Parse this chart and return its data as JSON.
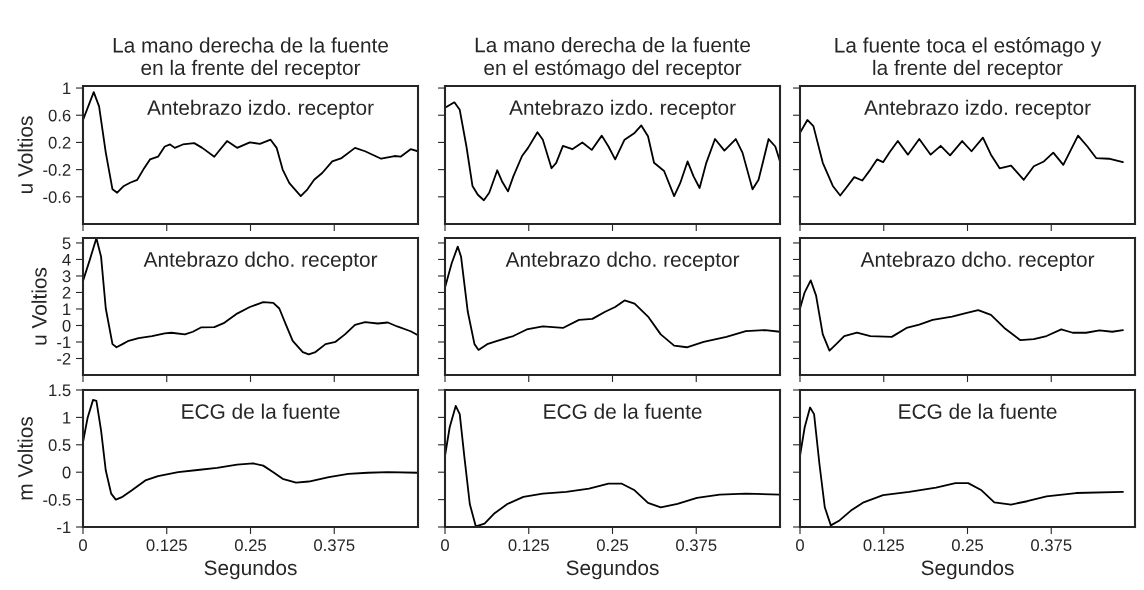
{
  "chart_data": [
    {
      "type": "line",
      "title": "La mano derecha de la fuente\nen la frente del receptor",
      "ylabel": "u Voltios",
      "xlim": [
        0,
        0.5
      ],
      "xticks": [
        0,
        0.125,
        0.25,
        0.375
      ],
      "ylim": [
        -1,
        1.03
      ],
      "yticks": [
        -0.6,
        -0.2,
        0.2,
        0.6,
        1
      ],
      "tick_labels": "y",
      "annotations": [
        "Antebrazo izdo. receptor"
      ],
      "series": [
        {
          "color": "#000000",
          "x": [
            0,
            0.016,
            0.024,
            0.034,
            0.044,
            0.051,
            0.061,
            0.071,
            0.081,
            0.09,
            0.1,
            0.112,
            0.122,
            0.13,
            0.137,
            0.149,
            0.166,
            0.178,
            0.196,
            0.205,
            0.215,
            0.23,
            0.249,
            0.264,
            0.28,
            0.289,
            0.298,
            0.308,
            0.325,
            0.335,
            0.345,
            0.357,
            0.372,
            0.386,
            0.406,
            0.421,
            0.445,
            0.465,
            0.474,
            0.489,
            0.5
          ],
          "values": [
            0.53,
            0.94,
            0.73,
            0.05,
            -0.49,
            -0.54,
            -0.44,
            -0.39,
            -0.35,
            -0.2,
            -0.05,
            -0.01,
            0.14,
            0.17,
            0.12,
            0.17,
            0.19,
            0.12,
            -0.01,
            0.1,
            0.22,
            0.12,
            0.2,
            0.18,
            0.24,
            0.12,
            -0.2,
            -0.4,
            -0.59,
            -0.49,
            -0.35,
            -0.25,
            -0.08,
            -0.03,
            0.12,
            0.07,
            -0.04,
            0.0,
            -0.01,
            0.1,
            0.07
          ]
        }
      ]
    },
    {
      "type": "line",
      "title": "La mano derecha de la fuente\nen el estómago del receptor",
      "xlim": [
        0,
        0.5
      ],
      "xticks": [
        0,
        0.125,
        0.25,
        0.375
      ],
      "ylim": [
        -1,
        1.03
      ],
      "yticks": [
        -0.6,
        -0.2,
        0.2,
        0.6,
        1
      ],
      "tick_labels": false,
      "annotations": [
        "Antebrazo izdo. receptor"
      ],
      "series": [
        {
          "color": "#000000",
          "x": [
            0,
            0.014,
            0.022,
            0.032,
            0.041,
            0.049,
            0.058,
            0.066,
            0.078,
            0.085,
            0.094,
            0.102,
            0.115,
            0.124,
            0.138,
            0.146,
            0.159,
            0.166,
            0.176,
            0.19,
            0.205,
            0.219,
            0.234,
            0.244,
            0.254,
            0.268,
            0.283,
            0.293,
            0.303,
            0.312,
            0.327,
            0.342,
            0.351,
            0.362,
            0.371,
            0.38,
            0.39,
            0.403,
            0.417,
            0.434,
            0.444,
            0.459,
            0.468,
            0.483,
            0.493,
            0.5
          ],
          "values": [
            0.71,
            0.79,
            0.68,
            0.14,
            -0.44,
            -0.57,
            -0.65,
            -0.54,
            -0.21,
            -0.37,
            -0.52,
            -0.3,
            0.0,
            0.12,
            0.35,
            0.24,
            -0.18,
            -0.1,
            0.15,
            0.1,
            0.2,
            0.09,
            0.3,
            0.14,
            -0.05,
            0.24,
            0.34,
            0.45,
            0.29,
            -0.1,
            -0.22,
            -0.59,
            -0.4,
            -0.08,
            -0.3,
            -0.47,
            -0.1,
            0.25,
            0.08,
            0.25,
            0.05,
            -0.49,
            -0.35,
            0.25,
            0.14,
            -0.08
          ]
        }
      ]
    },
    {
      "type": "line",
      "title": "La fuente toca el estómago y\nla frente del receptor",
      "xlim": [
        0,
        0.5
      ],
      "xticks": [
        0,
        0.125,
        0.25,
        0.375
      ],
      "ylim": [
        -1,
        1.03
      ],
      "yticks": [
        -0.6,
        -0.2,
        0.2,
        0.6,
        1
      ],
      "tick_labels": false,
      "annotations": [
        "Antebrazo izdo. receptor"
      ],
      "series": [
        {
          "color": "#000000",
          "x": [
            0,
            0.011,
            0.02,
            0.034,
            0.049,
            0.06,
            0.071,
            0.081,
            0.093,
            0.105,
            0.115,
            0.124,
            0.134,
            0.146,
            0.161,
            0.178,
            0.195,
            0.21,
            0.224,
            0.242,
            0.256,
            0.273,
            0.285,
            0.298,
            0.315,
            0.334,
            0.349,
            0.364,
            0.378,
            0.393,
            0.415,
            0.429,
            0.442,
            0.461,
            0.482
          ],
          "values": [
            0.34,
            0.53,
            0.44,
            -0.1,
            -0.44,
            -0.58,
            -0.44,
            -0.31,
            -0.36,
            -0.2,
            -0.05,
            -0.09,
            0.06,
            0.22,
            0.02,
            0.25,
            0.02,
            0.15,
            0.01,
            0.22,
            0.07,
            0.27,
            0.02,
            -0.18,
            -0.14,
            -0.35,
            -0.15,
            -0.08,
            0.05,
            -0.13,
            0.3,
            0.14,
            -0.03,
            -0.04,
            -0.09
          ]
        }
      ]
    },
    {
      "type": "line",
      "ylabel": "u Voltios",
      "xlim": [
        0,
        0.5
      ],
      "xticks": [
        0,
        0.125,
        0.25,
        0.375
      ],
      "ylim": [
        -3,
        5.3
      ],
      "yticks": [
        -2,
        -1,
        0,
        1,
        2,
        3,
        4,
        5
      ],
      "tick_labels": "y",
      "annotations": [
        "Antebrazo dcho. receptor"
      ],
      "series": [
        {
          "color": "#000000",
          "x": [
            0,
            0.01,
            0.02,
            0.027,
            0.034,
            0.044,
            0.05,
            0.059,
            0.068,
            0.083,
            0.103,
            0.122,
            0.132,
            0.152,
            0.164,
            0.176,
            0.196,
            0.21,
            0.23,
            0.249,
            0.269,
            0.284,
            0.293,
            0.303,
            0.313,
            0.328,
            0.337,
            0.347,
            0.362,
            0.377,
            0.391,
            0.406,
            0.421,
            0.44,
            0.455,
            0.469,
            0.489,
            0.5
          ],
          "values": [
            2.7,
            3.96,
            5.29,
            4.16,
            1.03,
            -1.13,
            -1.32,
            -1.13,
            -0.93,
            -0.77,
            -0.64,
            -0.48,
            -0.44,
            -0.54,
            -0.38,
            -0.12,
            -0.1,
            0.14,
            0.72,
            1.12,
            1.41,
            1.37,
            1.03,
            0.04,
            -0.93,
            -1.61,
            -1.75,
            -1.61,
            -1.13,
            -0.99,
            -0.54,
            0.04,
            0.2,
            0.12,
            0.18,
            -0.06,
            -0.35,
            -0.59
          ]
        }
      ]
    },
    {
      "type": "line",
      "xlim": [
        0,
        0.5
      ],
      "xticks": [
        0,
        0.125,
        0.25,
        0.375
      ],
      "ylim": [
        -3,
        5.3
      ],
      "yticks": [
        -2,
        -1,
        0,
        1,
        2,
        3,
        4,
        5
      ],
      "tick_labels": false,
      "annotations": [
        "Antebrazo dcho. receptor"
      ],
      "series": [
        {
          "color": "#000000",
          "x": [
            0,
            0.01,
            0.019,
            0.024,
            0.034,
            0.044,
            0.05,
            0.063,
            0.078,
            0.102,
            0.122,
            0.146,
            0.176,
            0.2,
            0.22,
            0.239,
            0.254,
            0.268,
            0.283,
            0.303,
            0.322,
            0.342,
            0.361,
            0.386,
            0.42,
            0.449,
            0.478,
            0.5
          ],
          "values": [
            2.3,
            3.77,
            4.78,
            4.16,
            0.83,
            -1.13,
            -1.48,
            -1.13,
            -0.93,
            -0.64,
            -0.24,
            -0.05,
            -0.15,
            0.34,
            0.4,
            0.83,
            1.12,
            1.52,
            1.32,
            0.54,
            -0.54,
            -1.22,
            -1.32,
            -0.99,
            -0.69,
            -0.34,
            -0.28,
            -0.38
          ]
        }
      ]
    },
    {
      "type": "line",
      "xlim": [
        0,
        0.5
      ],
      "xticks": [
        0,
        0.125,
        0.25,
        0.375
      ],
      "ylim": [
        -3,
        5.3
      ],
      "yticks": [
        -2,
        -1,
        0,
        1,
        2,
        3,
        4,
        5
      ],
      "tick_labels": false,
      "annotations": [
        "Antebrazo dcho. receptor"
      ],
      "series": [
        {
          "color": "#000000",
          "x": [
            0,
            0.007,
            0.016,
            0.024,
            0.034,
            0.044,
            0.054,
            0.066,
            0.085,
            0.105,
            0.137,
            0.159,
            0.178,
            0.198,
            0.227,
            0.246,
            0.266,
            0.285,
            0.305,
            0.329,
            0.349,
            0.368,
            0.39,
            0.407,
            0.427,
            0.447,
            0.466,
            0.482
          ],
          "values": [
            1.03,
            2.01,
            2.73,
            1.81,
            -0.54,
            -1.52,
            -1.13,
            -0.64,
            -0.44,
            -0.64,
            -0.69,
            -0.15,
            0.05,
            0.34,
            0.54,
            0.73,
            0.93,
            0.64,
            -0.15,
            -0.89,
            -0.83,
            -0.64,
            -0.24,
            -0.44,
            -0.44,
            -0.3,
            -0.38,
            -0.28
          ]
        }
      ]
    },
    {
      "type": "line",
      "ylabel": "m Voltios",
      "xlabel": "Segundos",
      "xlim": [
        0,
        0.5
      ],
      "xticks": [
        0,
        0.125,
        0.25,
        0.375
      ],
      "ylim": [
        -1,
        1.5
      ],
      "yticks": [
        -1,
        -0.5,
        0,
        0.5,
        1,
        1.5
      ],
      "annotations": [
        "ECG de la fuente"
      ],
      "series": [
        {
          "color": "#000000",
          "x": [
            0,
            0.007,
            0.015,
            0.02,
            0.027,
            0.034,
            0.042,
            0.049,
            0.059,
            0.073,
            0.093,
            0.112,
            0.142,
            0.171,
            0.2,
            0.23,
            0.254,
            0.269,
            0.284,
            0.298,
            0.318,
            0.337,
            0.367,
            0.396,
            0.425,
            0.455,
            0.5
          ],
          "values": [
            0.55,
            1.0,
            1.32,
            1.3,
            0.76,
            0.03,
            -0.39,
            -0.5,
            -0.45,
            -0.33,
            -0.15,
            -0.07,
            0,
            0.04,
            0.08,
            0.14,
            0.16,
            0.12,
            0,
            -0.12,
            -0.19,
            -0.17,
            -0.09,
            -0.03,
            -0.01,
            0,
            -0.01
          ]
        }
      ]
    },
    {
      "type": "line",
      "xlabel": "Segundos",
      "xlim": [
        0,
        0.5
      ],
      "xticks": [
        0,
        0.125,
        0.25,
        0.375
      ],
      "ylim": [
        -1,
        1.5
      ],
      "yticks": [
        -1,
        -0.5,
        0,
        0.5,
        1,
        1.5
      ],
      "tick_labels": "x",
      "annotations": [
        "ECG de la fuente"
      ],
      "series": [
        {
          "color": "#000000",
          "x": [
            0,
            0.007,
            0.016,
            0.022,
            0.029,
            0.037,
            0.046,
            0.059,
            0.073,
            0.093,
            0.117,
            0.146,
            0.181,
            0.215,
            0.244,
            0.264,
            0.283,
            0.303,
            0.322,
            0.347,
            0.376,
            0.41,
            0.449,
            0.5
          ],
          "values": [
            0.3,
            0.82,
            1.21,
            1.06,
            0.27,
            -0.58,
            -0.99,
            -0.94,
            -0.76,
            -0.58,
            -0.45,
            -0.39,
            -0.36,
            -0.3,
            -0.21,
            -0.21,
            -0.33,
            -0.56,
            -0.64,
            -0.58,
            -0.47,
            -0.41,
            -0.39,
            -0.41
          ]
        }
      ]
    },
    {
      "type": "line",
      "xlabel": "Segundos",
      "xlim": [
        0,
        0.5
      ],
      "xticks": [
        0,
        0.125,
        0.25,
        0.375
      ],
      "ylim": [
        -1,
        1.5
      ],
      "yticks": [
        -1,
        -0.5,
        0,
        0.5,
        1,
        1.5
      ],
      "tick_labels": "x",
      "annotations": [
        "ECG de la fuente"
      ],
      "series": [
        {
          "color": "#000000",
          "x": [
            0,
            0.007,
            0.015,
            0.021,
            0.029,
            0.037,
            0.046,
            0.059,
            0.076,
            0.095,
            0.124,
            0.163,
            0.203,
            0.232,
            0.251,
            0.271,
            0.29,
            0.315,
            0.339,
            0.368,
            0.412,
            0.482
          ],
          "values": [
            0.3,
            0.82,
            1.18,
            1.06,
            0.15,
            -0.64,
            -0.97,
            -0.88,
            -0.7,
            -0.55,
            -0.42,
            -0.36,
            -0.28,
            -0.2,
            -0.2,
            -0.33,
            -0.55,
            -0.59,
            -0.53,
            -0.44,
            -0.38,
            -0.36
          ]
        }
      ]
    }
  ]
}
